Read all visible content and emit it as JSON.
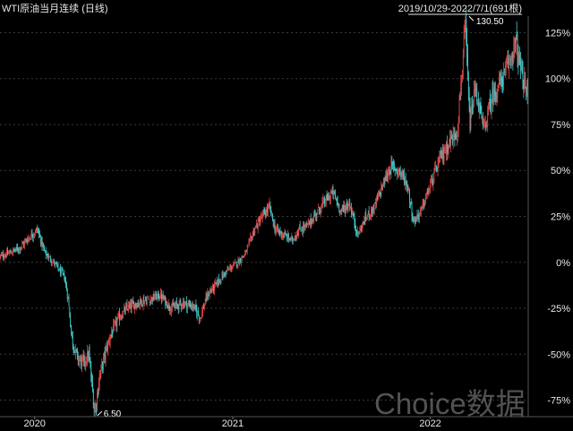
{
  "chart_data": {
    "type": "candlestick",
    "title": "WTI原油当月连续 (日线)",
    "range_label": "2019/10/29-2022/7/1(691根)",
    "watermark": "Choice数据",
    "y_axis": {
      "side": "right",
      "unit": "percent",
      "ticks": [
        125,
        100,
        75,
        50,
        25,
        0,
        -25,
        -50,
        -75
      ],
      "tick_labels": [
        "125%",
        "100%",
        "75%",
        "50%",
        "25%",
        "0%",
        "-25%",
        "-50%",
        "-75%"
      ],
      "negative_label_color": "#22cc22",
      "ylim": [
        -84,
        134
      ],
      "grid": true
    },
    "x_axis": {
      "tick_labels": [
        "2020",
        "2021",
        "2022"
      ],
      "xlim": [
        "2019-10-29",
        "2022-07-01"
      ]
    },
    "annotations": [
      {
        "label": "130.50",
        "marker": "max",
        "date": "2022-03-07",
        "value_pct": 132
      },
      {
        "label": "6.50",
        "marker": "min",
        "date": "2020-04-21",
        "value_pct": -83
      }
    ],
    "colors": {
      "up": "#e04848",
      "down": "#3fd0d0",
      "background": "#000000",
      "grid": "#3a3a3a"
    },
    "series_close_pct": [
      [
        "2019-10-29",
        3
      ],
      [
        "2019-11-15",
        5
      ],
      [
        "2019-12-05",
        8
      ],
      [
        "2019-12-20",
        13
      ],
      [
        "2020-01-06",
        18
      ],
      [
        "2020-01-20",
        5
      ],
      [
        "2020-02-05",
        0
      ],
      [
        "2020-02-25",
        -8
      ],
      [
        "2020-03-03",
        -20
      ],
      [
        "2020-03-10",
        -42
      ],
      [
        "2020-03-20",
        -52
      ],
      [
        "2020-03-31",
        -55
      ],
      [
        "2020-04-10",
        -50
      ],
      [
        "2020-04-21",
        -82
      ],
      [
        "2020-04-30",
        -62
      ],
      [
        "2020-05-10",
        -50
      ],
      [
        "2020-05-20",
        -40
      ],
      [
        "2020-06-05",
        -30
      ],
      [
        "2020-06-20",
        -25
      ],
      [
        "2020-07-10",
        -22
      ],
      [
        "2020-08-01",
        -20
      ],
      [
        "2020-08-20",
        -18
      ],
      [
        "2020-09-10",
        -25
      ],
      [
        "2020-10-01",
        -22
      ],
      [
        "2020-10-20",
        -24
      ],
      [
        "2020-11-02",
        -30
      ],
      [
        "2020-11-15",
        -18
      ],
      [
        "2020-12-01",
        -12
      ],
      [
        "2020-12-20",
        -5
      ],
      [
        "2021-01-10",
        0
      ],
      [
        "2021-01-25",
        5
      ],
      [
        "2021-02-10",
        18
      ],
      [
        "2021-02-25",
        25
      ],
      [
        "2021-03-10",
        30
      ],
      [
        "2021-03-20",
        18
      ],
      [
        "2021-04-05",
        15
      ],
      [
        "2021-04-20",
        12
      ],
      [
        "2021-05-05",
        18
      ],
      [
        "2021-05-20",
        20
      ],
      [
        "2021-06-05",
        27
      ],
      [
        "2021-06-20",
        33
      ],
      [
        "2021-07-05",
        38
      ],
      [
        "2021-07-20",
        28
      ],
      [
        "2021-08-05",
        32
      ],
      [
        "2021-08-20",
        15
      ],
      [
        "2021-09-05",
        25
      ],
      [
        "2021-09-20",
        30
      ],
      [
        "2021-10-05",
        42
      ],
      [
        "2021-10-20",
        52
      ],
      [
        "2021-11-05",
        50
      ],
      [
        "2021-11-20",
        42
      ],
      [
        "2021-12-01",
        22
      ],
      [
        "2021-12-15",
        28
      ],
      [
        "2022-01-05",
        45
      ],
      [
        "2022-01-20",
        57
      ],
      [
        "2022-02-05",
        65
      ],
      [
        "2022-02-20",
        72
      ],
      [
        "2022-03-07",
        128
      ],
      [
        "2022-03-15",
        75
      ],
      [
        "2022-03-25",
        95
      ],
      [
        "2022-04-10",
        72
      ],
      [
        "2022-04-25",
        90
      ],
      [
        "2022-05-05",
        95
      ],
      [
        "2022-05-20",
        103
      ],
      [
        "2022-06-08",
        120
      ],
      [
        "2022-06-20",
        100
      ],
      [
        "2022-07-01",
        90
      ]
    ]
  }
}
